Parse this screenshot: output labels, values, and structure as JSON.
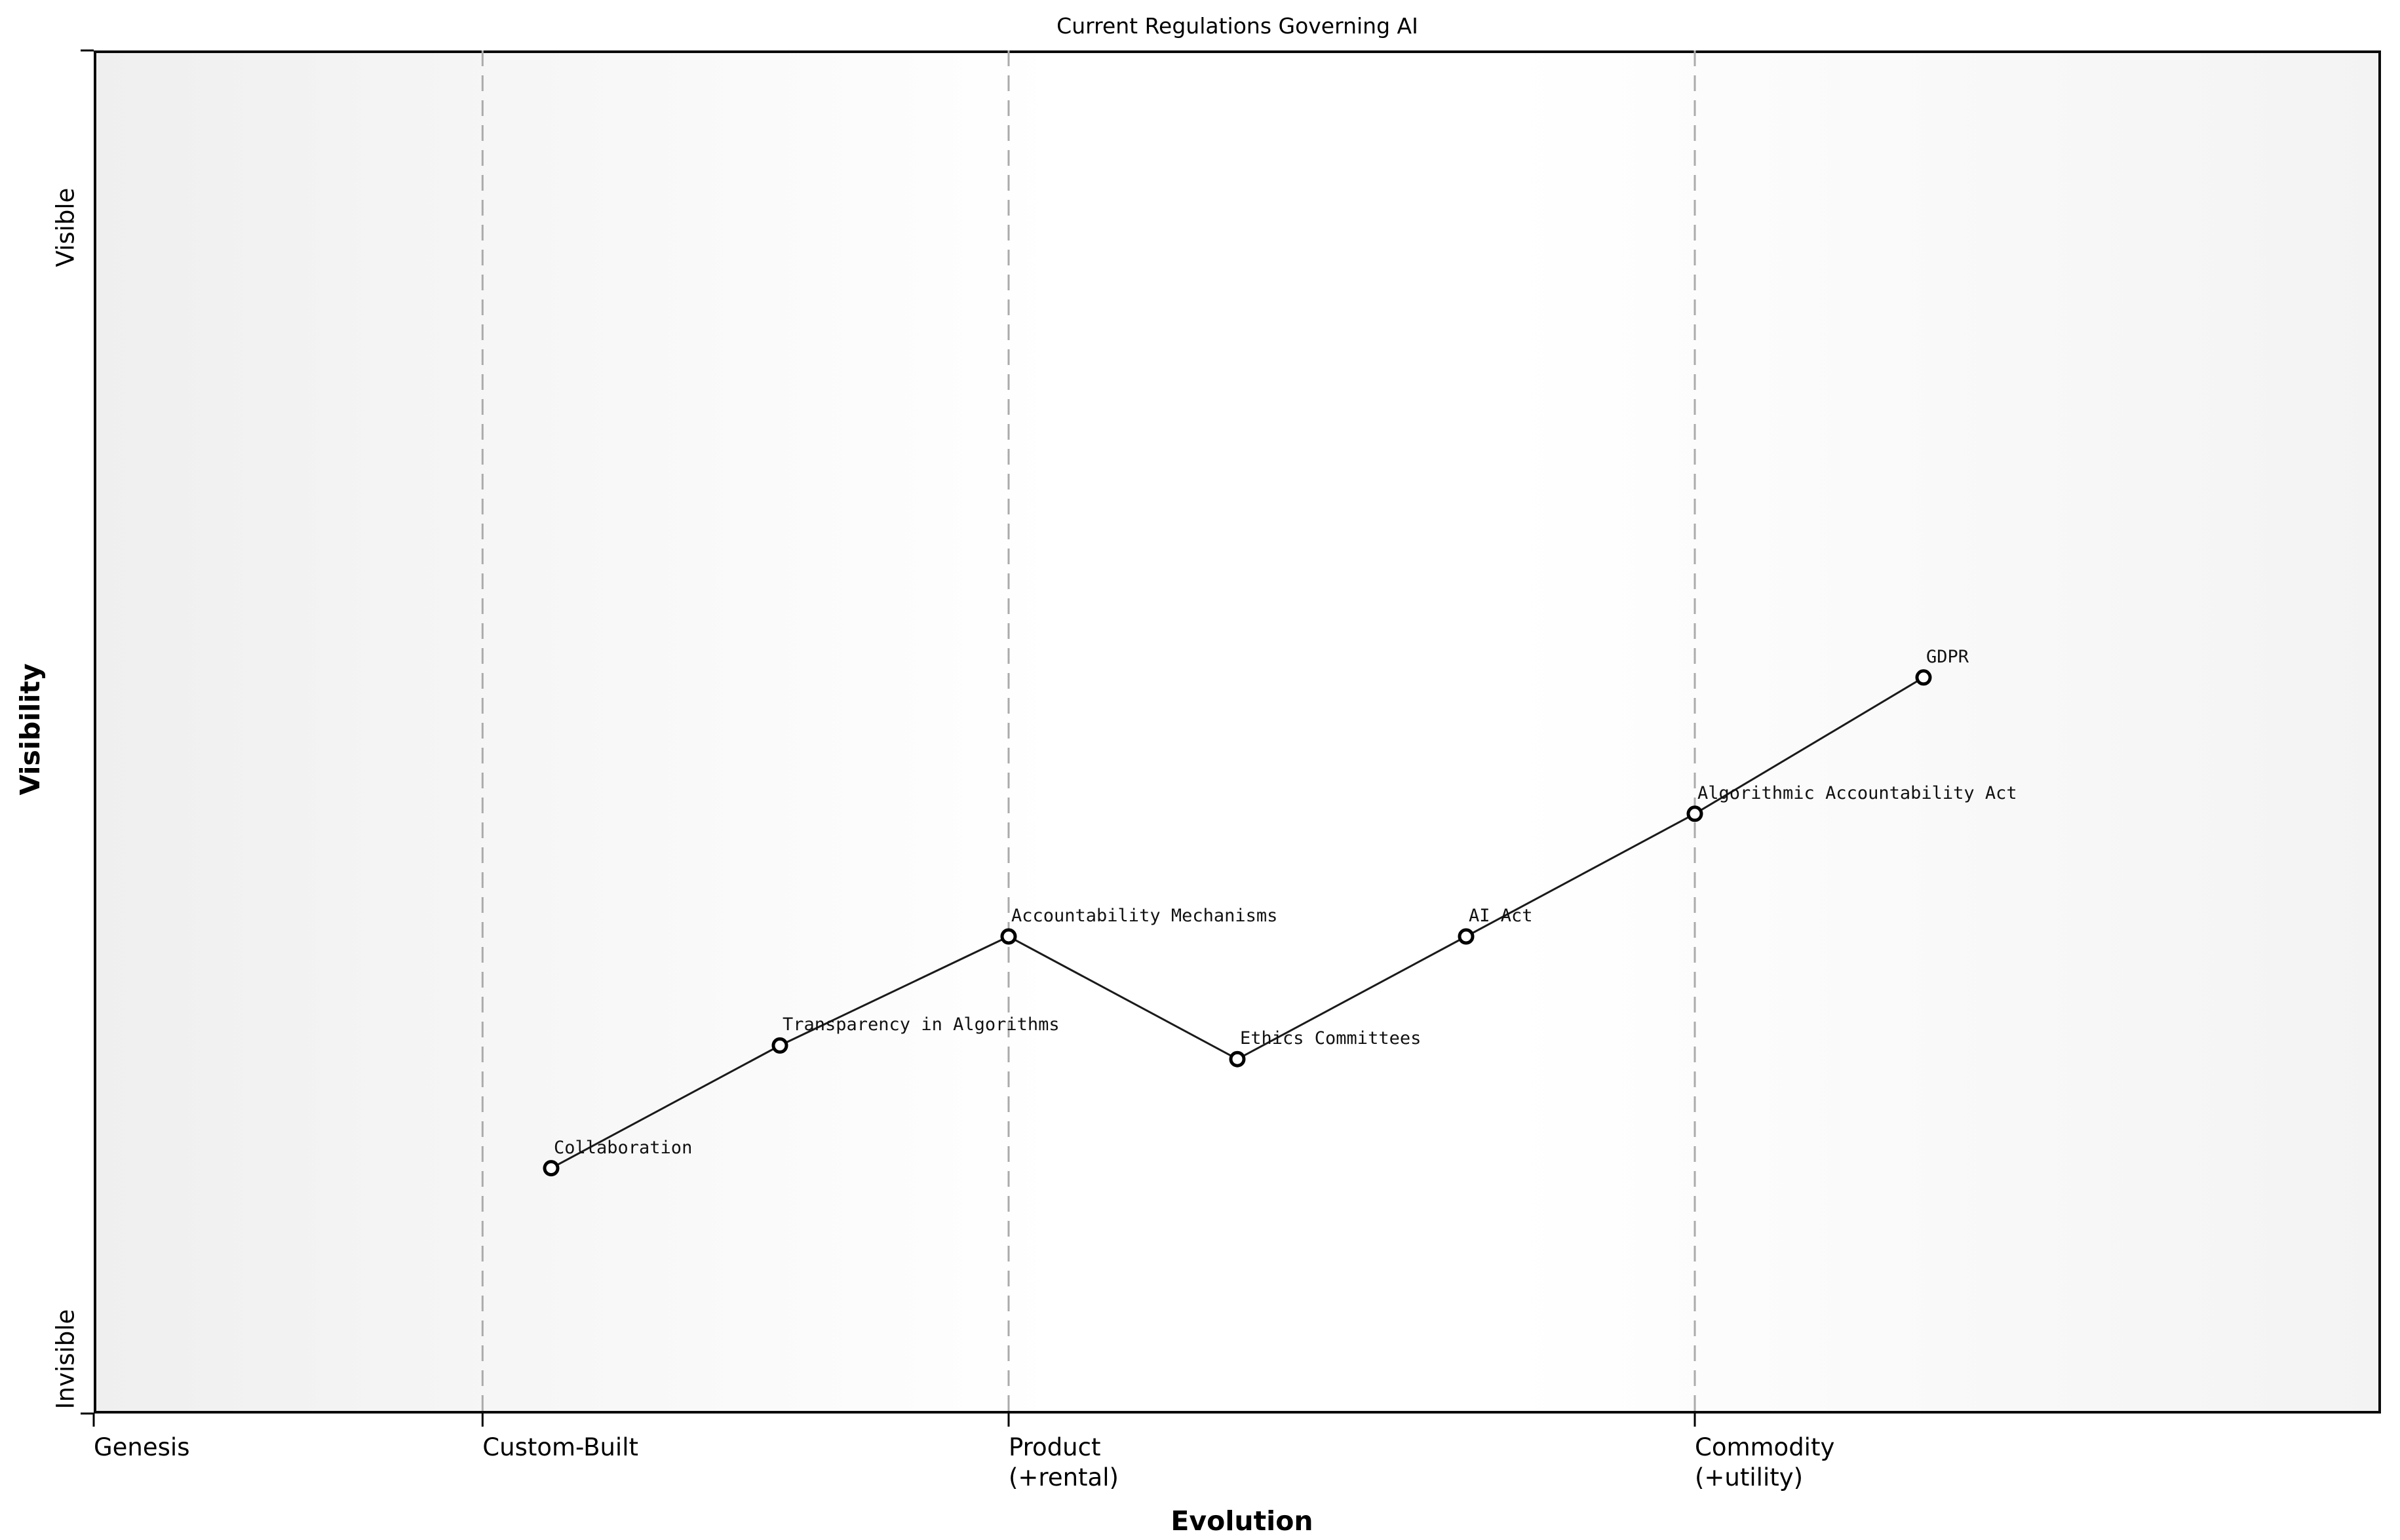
{
  "chart_data": {
    "type": "line",
    "variant": "wardley-map",
    "title": "Current Regulations Governing AI",
    "xlabel": "Evolution",
    "ylabel": "Visibility",
    "x_range": [
      0,
      1
    ],
    "y_range": [
      0,
      1
    ],
    "x_ticks": [
      {
        "label": "Genesis",
        "pos": 0
      },
      {
        "label": "Custom-Built",
        "pos": 0.17
      },
      {
        "label": "Product\n(+rental)",
        "pos": 0.4
      },
      {
        "label": "Commodity\n(+utility)",
        "pos": 0.7
      }
    ],
    "y_ticks": [
      {
        "label": "Invisible",
        "pos": 0.04
      },
      {
        "label": "Visible",
        "pos": 0.87
      }
    ],
    "stage_boundaries": [
      0.17,
      0.4,
      0.7
    ],
    "points": [
      {
        "label": "Collaboration",
        "evolution": 0.2,
        "visibility": 0.18
      },
      {
        "label": "Transparency in Algorithms",
        "evolution": 0.3,
        "visibility": 0.27
      },
      {
        "label": "Accountability Mechanisms",
        "evolution": 0.4,
        "visibility": 0.35
      },
      {
        "label": "Ethics Committees",
        "evolution": 0.5,
        "visibility": 0.26
      },
      {
        "label": "AI Act",
        "evolution": 0.6,
        "visibility": 0.35
      },
      {
        "label": "Algorithmic Accountability Act",
        "evolution": 0.7,
        "visibility": 0.44
      },
      {
        "label": "GDPR",
        "evolution": 0.8,
        "visibility": 0.54
      }
    ],
    "grid": "vertical-dashed-stage-boundaries",
    "legend": "none"
  },
  "colors": {
    "line": "#1a1a1a",
    "marker_fill": "#ffffff",
    "marker_edge": "#000000",
    "boundary_dash": "#ababab",
    "tick_mark": "#000000",
    "plot_border": "#0a0a0a",
    "bg_left": "#efefef",
    "bg_mid": "#ffffff",
    "bg_right": "#f3f3f3"
  }
}
